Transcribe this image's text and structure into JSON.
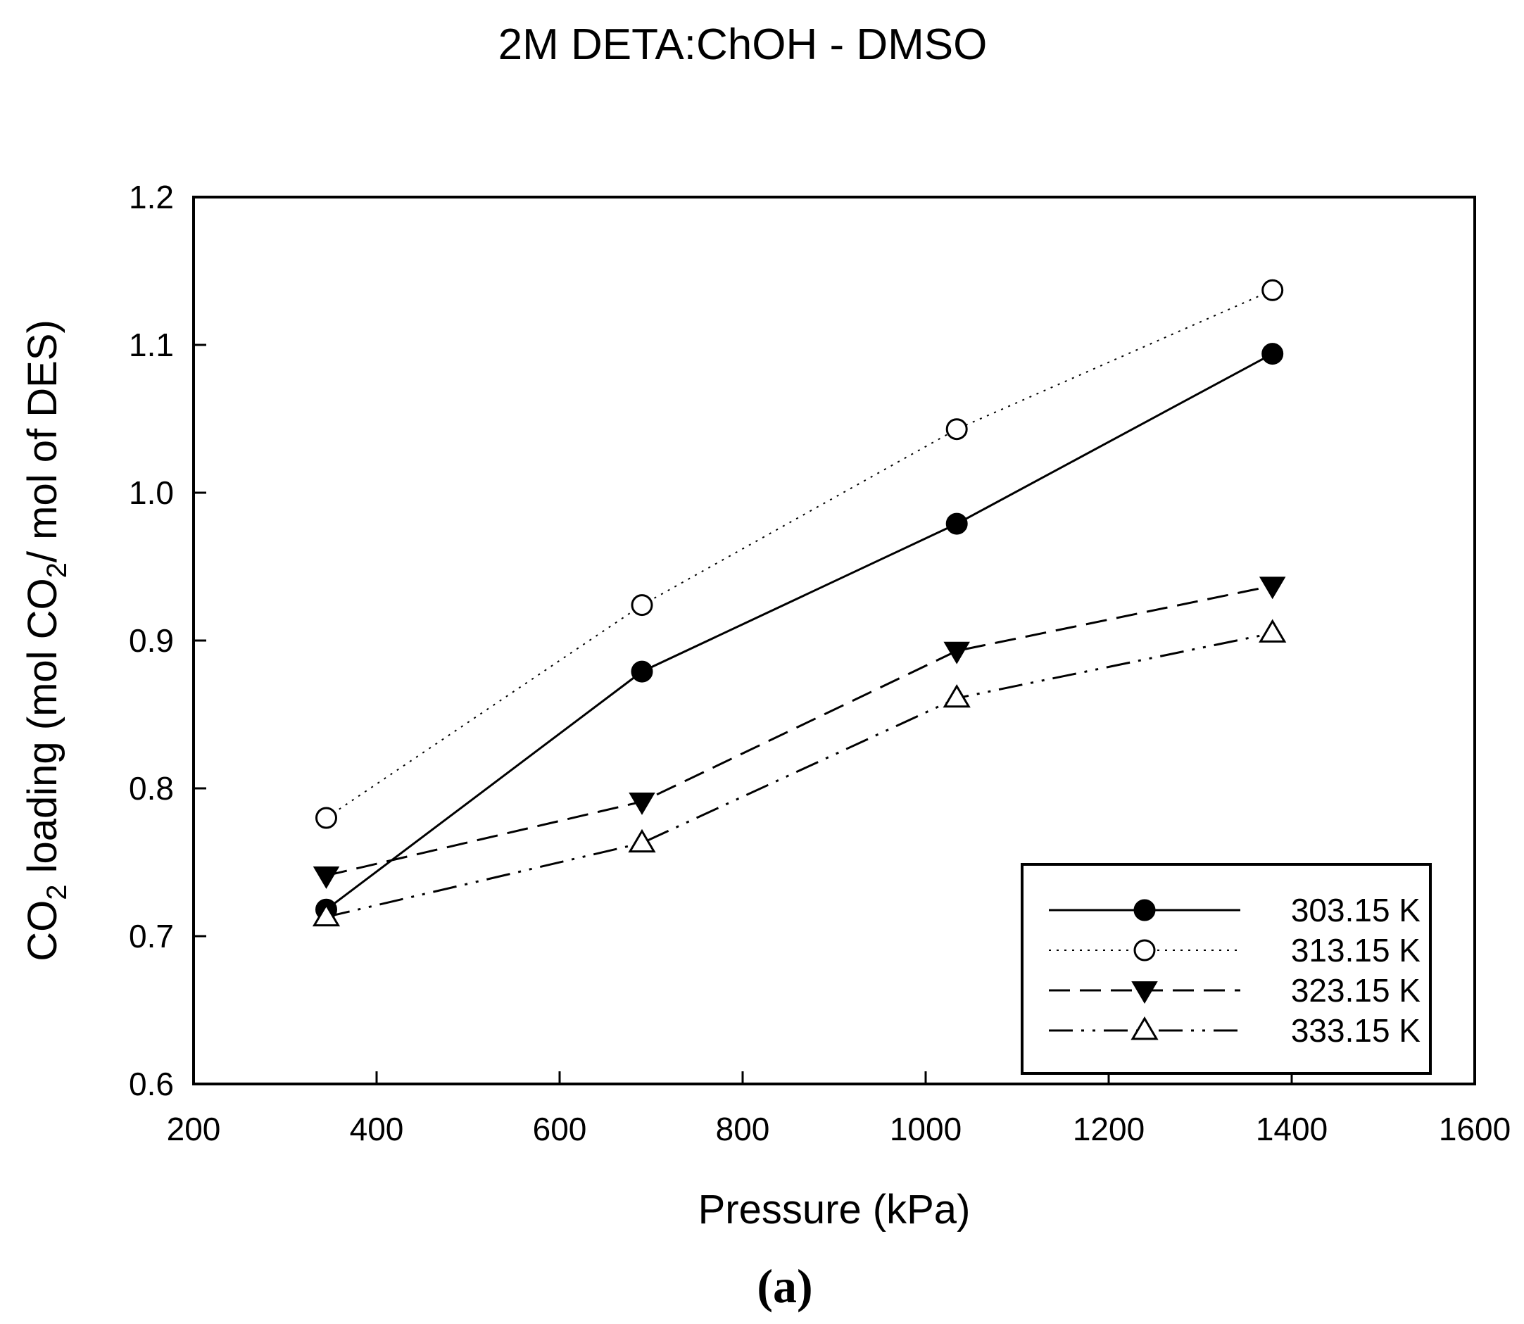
{
  "chart_data": {
    "type": "line",
    "title": "2M DETA:ChOH - DMSO",
    "xlabel": "Pressure (kPa)",
    "ylabel_parts": [
      "CO",
      "2",
      " loading (mol CO",
      "2",
      "/ mol of DES)"
    ],
    "caption": "(a)",
    "xlim": [
      200,
      1600
    ],
    "ylim": [
      0.6,
      1.2
    ],
    "x_ticks": [
      200,
      400,
      600,
      800,
      1000,
      1200,
      1400,
      1600
    ],
    "y_ticks": [
      0.6,
      0.7,
      0.8,
      0.9,
      1.0,
      1.1,
      1.2
    ],
    "x_tick_labels": [
      "200",
      "400",
      "600",
      "800",
      "1000",
      "1200",
      "1400",
      "1600"
    ],
    "y_tick_labels": [
      "0.6",
      "0.7",
      "0.8",
      "0.9",
      "1.0",
      "1.1",
      "1.2"
    ],
    "x": [
      345,
      690,
      1034,
      1379
    ],
    "series": [
      {
        "name": "303.15 K",
        "marker": "filled-circle",
        "line": "solid",
        "values": [
          0.718,
          0.879,
          0.979,
          1.094
        ]
      },
      {
        "name": "313.15 K",
        "marker": "open-circle",
        "line": "dotted",
        "values": [
          0.78,
          0.924,
          1.043,
          1.137
        ]
      },
      {
        "name": "323.15 K",
        "marker": "filled-triangle-down",
        "line": "dashed",
        "values": [
          0.741,
          0.791,
          0.893,
          0.937
        ]
      },
      {
        "name": "333.15 K",
        "marker": "open-triangle-up",
        "line": "dash-dot-dot",
        "values": [
          0.713,
          0.763,
          0.861,
          0.905
        ]
      }
    ],
    "legend_position": "bottom-right",
    "grid": false
  }
}
